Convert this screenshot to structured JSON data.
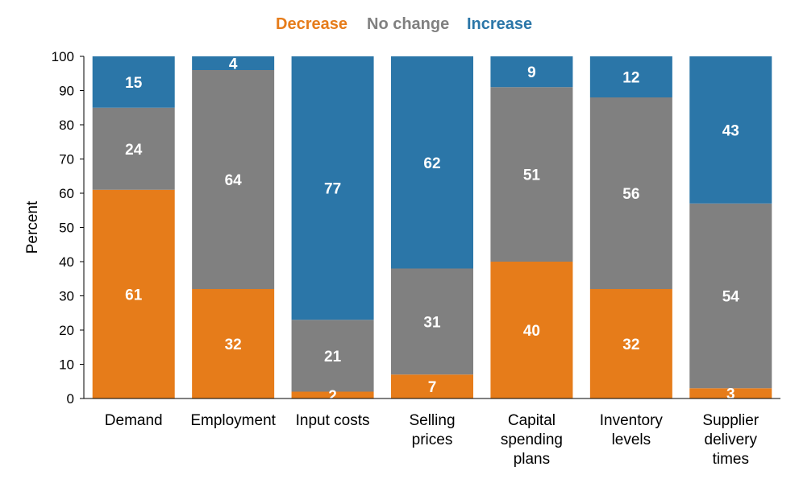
{
  "chart_data": {
    "type": "bar",
    "stacked": true,
    "title": "",
    "xlabel": "",
    "ylabel": "Percent",
    "ylim": [
      0,
      100
    ],
    "yticks": [
      0,
      10,
      20,
      30,
      40,
      50,
      60,
      70,
      80,
      90,
      100
    ],
    "grid": false,
    "legend_position": "top-center",
    "categories": [
      [
        "Demand"
      ],
      [
        "Employment"
      ],
      [
        "Input costs"
      ],
      [
        "Selling",
        "prices"
      ],
      [
        "Capital",
        "spending",
        "plans"
      ],
      [
        "Inventory",
        "levels"
      ],
      [
        "Supplier",
        "delivery",
        "times"
      ]
    ],
    "series": [
      {
        "name": "Decrease",
        "color": "#E67C1A",
        "values": [
          61,
          32,
          2,
          7,
          40,
          32,
          3
        ]
      },
      {
        "name": "No change",
        "color": "#808080",
        "values": [
          24,
          64,
          21,
          31,
          51,
          56,
          54
        ]
      },
      {
        "name": "Increase",
        "color": "#2B76A8",
        "values": [
          15,
          4,
          77,
          62,
          9,
          12,
          43
        ]
      }
    ]
  }
}
